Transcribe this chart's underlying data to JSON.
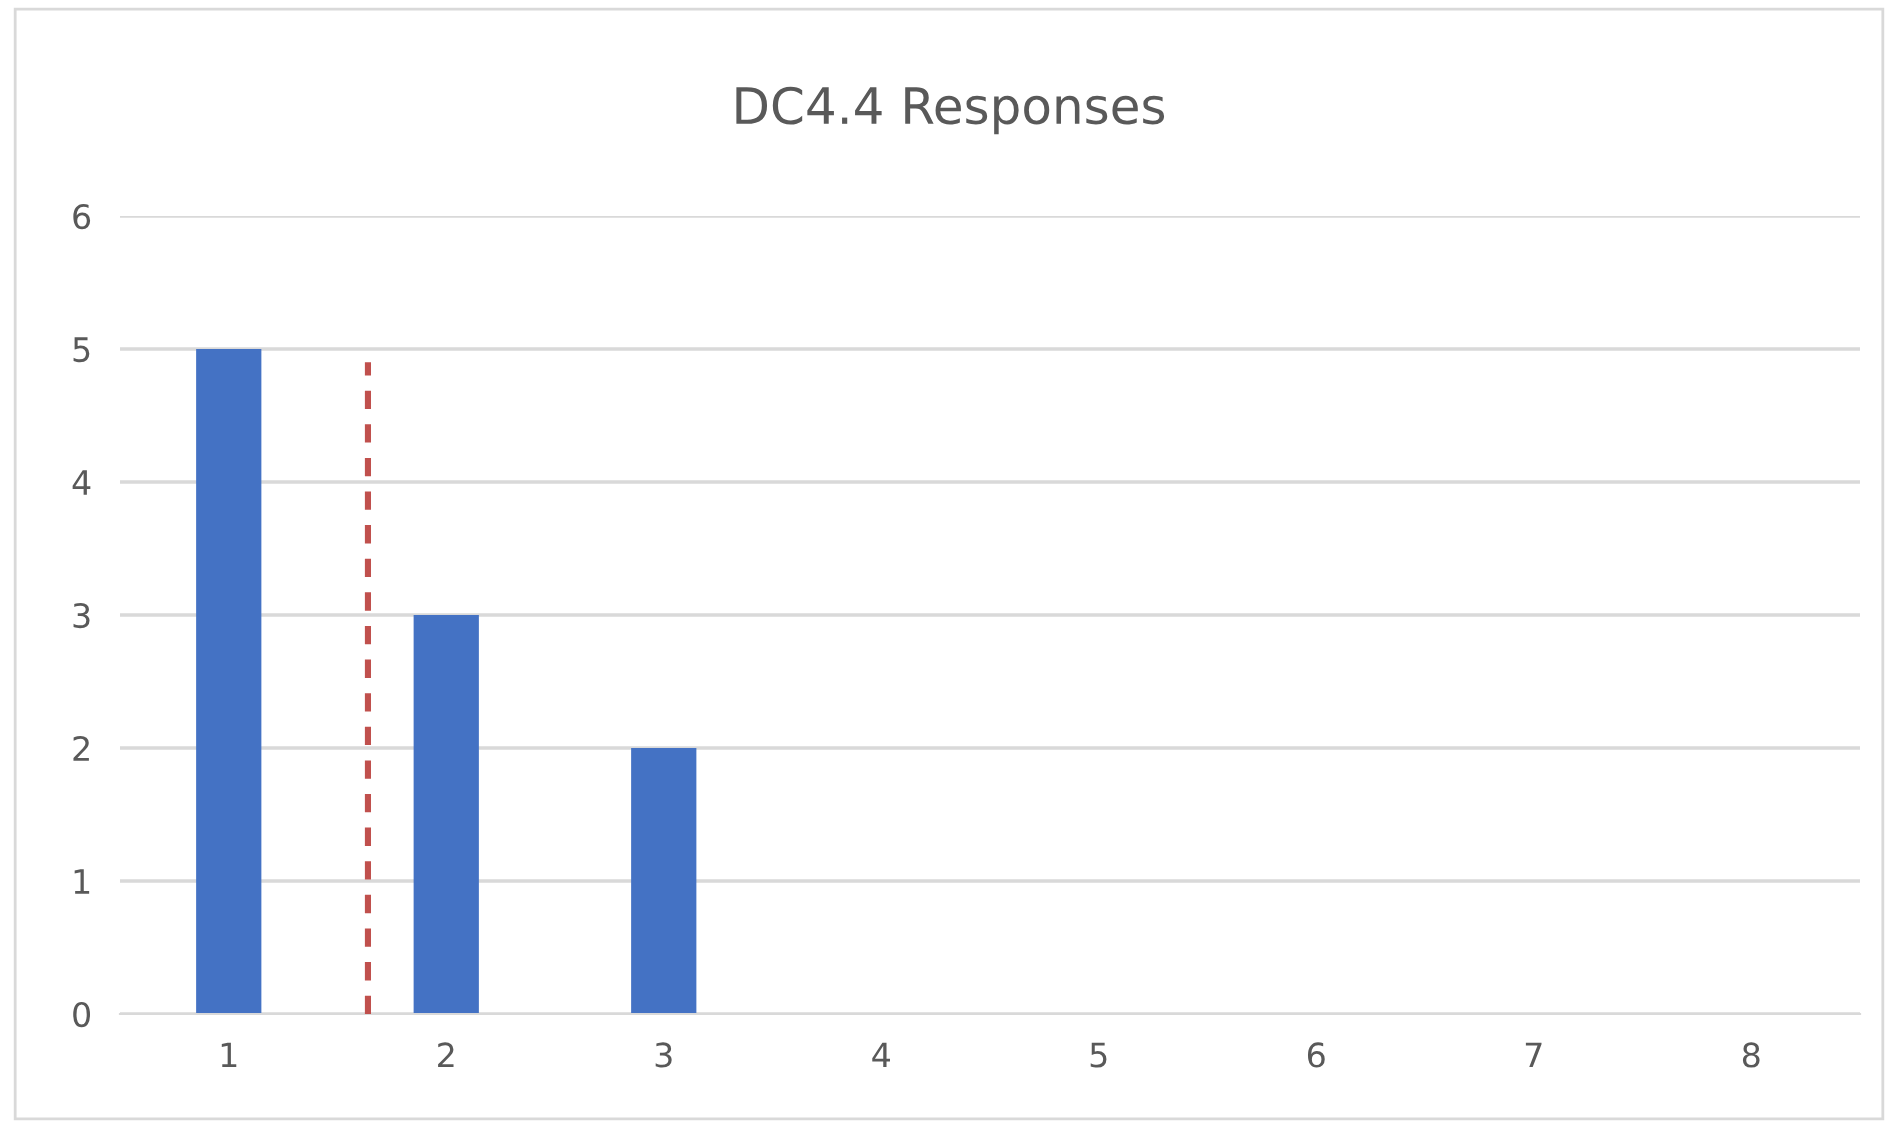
{
  "chart_data": {
    "type": "bar",
    "title": "DC4.4 Responses",
    "x": [
      1,
      2,
      3,
      4,
      5,
      6,
      7,
      8
    ],
    "series": [
      {
        "color": "#4472c4",
        "values": [
          5,
          3,
          2,
          0,
          0,
          0,
          0,
          0
        ]
      },
      {
        "type": "line",
        "color": "#c0504d",
        "line_style": "dashed",
        "marker": "none",
        "x": [
          1.64,
          1.64
        ],
        "values": [
          0,
          4.9
        ]
      }
    ],
    "xlim": [
      0.5,
      8.5
    ],
    "xticks": [
      1,
      2,
      3,
      4,
      5,
      6,
      7,
      8
    ],
    "ylim": [
      0,
      6
    ],
    "yticks": [
      0,
      1,
      2,
      3,
      4,
      5,
      6
    ],
    "grid": "y",
    "legend": false
  }
}
